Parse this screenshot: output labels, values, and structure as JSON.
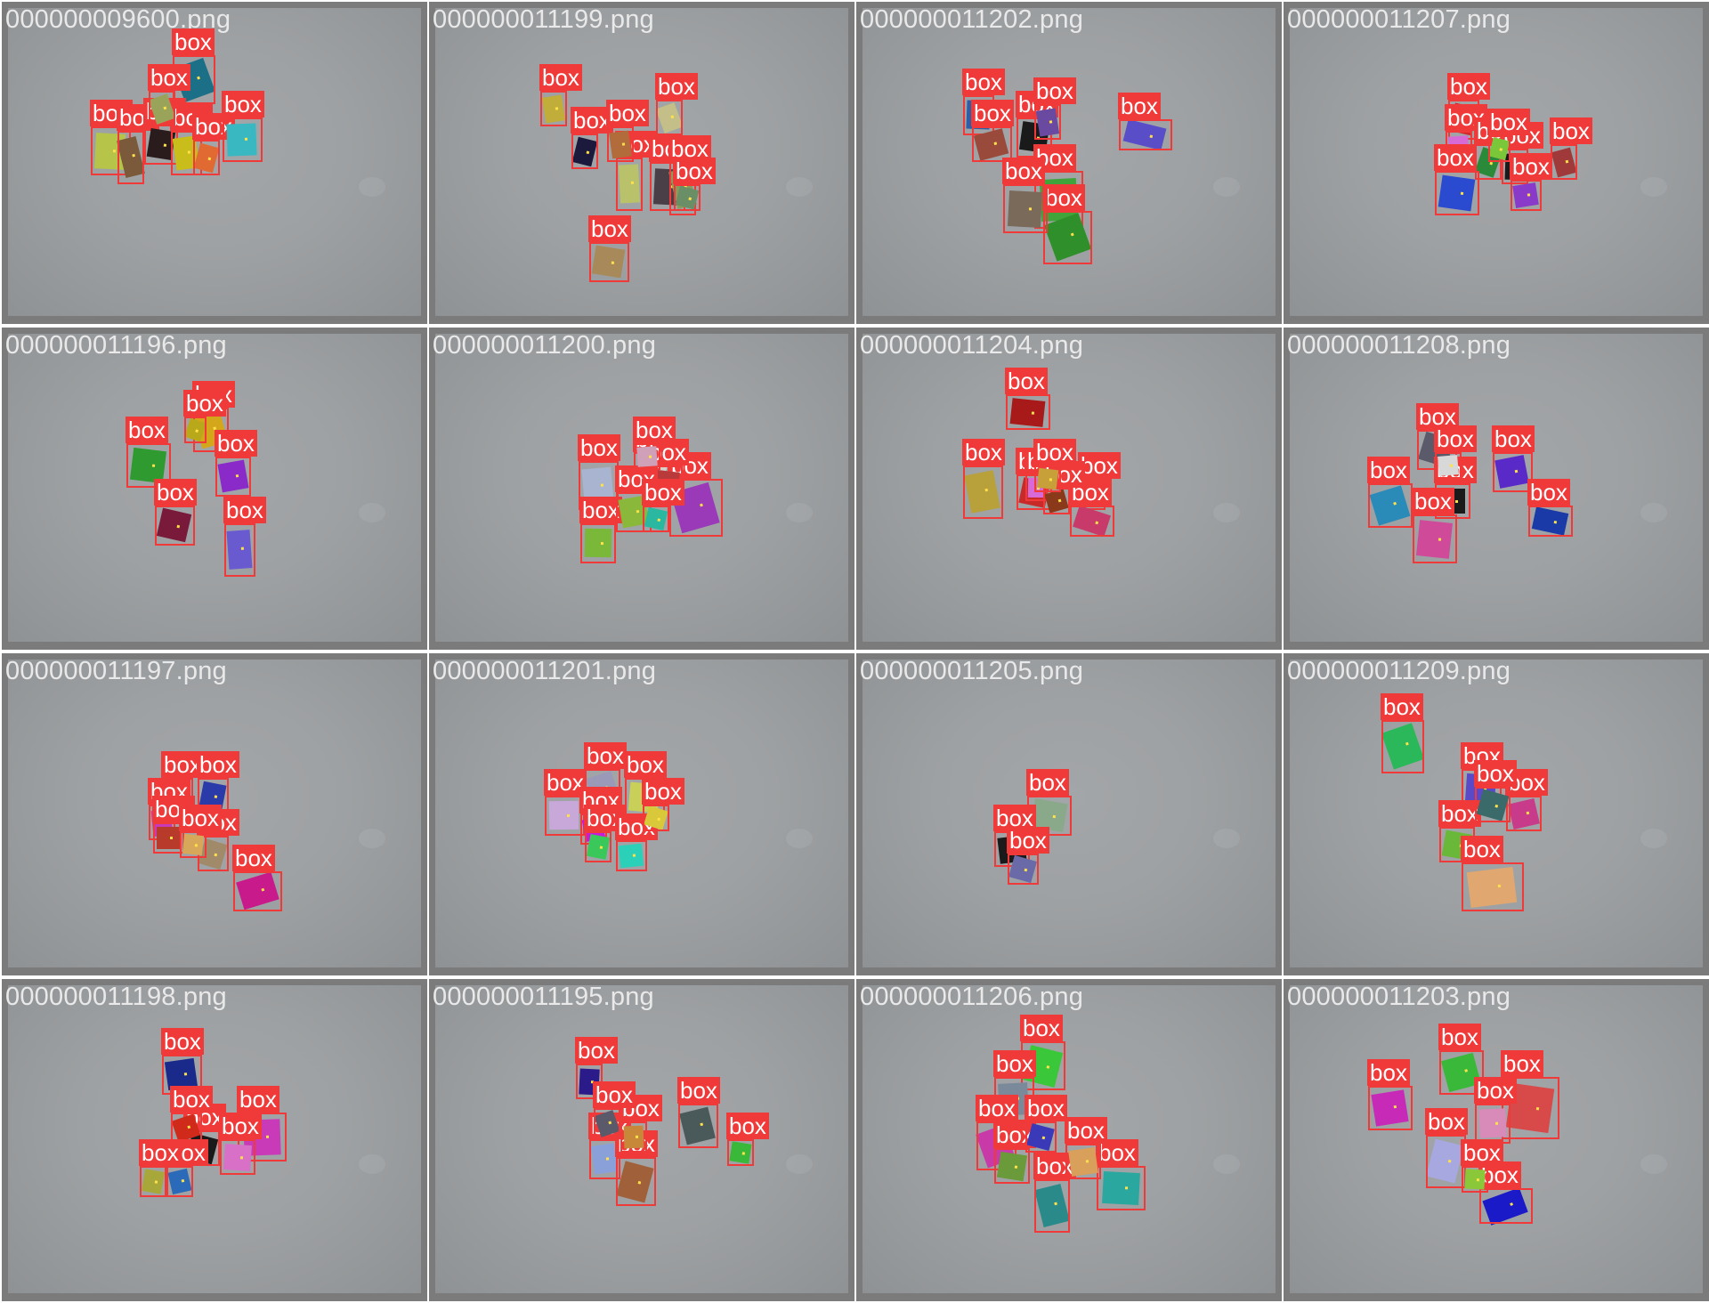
{
  "grid": {
    "columns": 4,
    "tiles": [
      {
        "filename": "000000009600.png",
        "label": "box",
        "detections": [
          {
            "color": "#1b6f86"
          },
          {
            "color": "#b7c44a"
          },
          {
            "color": "#7a5a3a"
          },
          {
            "color": "#2a1c1c"
          },
          {
            "color": "#c8bd1a"
          },
          {
            "color": "#e06a32"
          },
          {
            "color": "#3ab8c2"
          },
          {
            "color": "#9aa35a"
          }
        ]
      },
      {
        "filename": "000000011199.png",
        "label": "box",
        "detections": [
          {
            "color": "#c0ad3a"
          },
          {
            "color": "#1b1a3d"
          },
          {
            "color": "#b9c26a"
          },
          {
            "color": "#c4be88"
          },
          {
            "color": "#4a3f47"
          },
          {
            "color": "#8a9a5a"
          },
          {
            "color": "#a88a5a"
          },
          {
            "color": "#b26b3a"
          },
          {
            "color": "#6a8f66"
          }
        ]
      },
      {
        "filename": "000000011202.png",
        "label": "box",
        "detections": [
          {
            "color": "#2c5fa6"
          },
          {
            "color": "#9a4a3a"
          },
          {
            "color": "#1a1a1a"
          },
          {
            "color": "#6a4aa0"
          },
          {
            "color": "#5a4ec8"
          },
          {
            "color": "#3fa43a"
          },
          {
            "color": "#2f8f2a"
          },
          {
            "color": "#7a6a5a"
          }
        ]
      },
      {
        "filename": "000000011207.png",
        "label": "box",
        "detections": [
          {
            "color": "#d22a2a"
          },
          {
            "color": "#d86ad8"
          },
          {
            "color": "#2a8a3a"
          },
          {
            "color": "#1a1a1a"
          },
          {
            "color": "#a03a3a"
          },
          {
            "color": "#2a4ad0"
          },
          {
            "color": "#8a3ac8"
          },
          {
            "color": "#7ac83a"
          }
        ]
      },
      {
        "filename": "000000011196.png",
        "label": "box",
        "detections": [
          {
            "color": "#d4a61a"
          },
          {
            "color": "#2f9a2f"
          },
          {
            "color": "#8a2ac8"
          },
          {
            "color": "#7a1a3a"
          },
          {
            "color": "#6a5ad0"
          },
          {
            "color": "#b8a81a"
          }
        ]
      },
      {
        "filename": "000000011200.png",
        "label": "box",
        "detections": [
          {
            "color": "#a8b4d0"
          },
          {
            "color": "#d8d0c8"
          },
          {
            "color": "#7ab83a"
          },
          {
            "color": "#9a3ab8"
          },
          {
            "color": "#b83a3a"
          },
          {
            "color": "#8ab83a"
          },
          {
            "color": "#2ab8a0"
          },
          {
            "color": "#d0a0b8"
          }
        ]
      },
      {
        "filename": "000000011204.png",
        "label": "box",
        "detections": [
          {
            "color": "#a81a1a"
          },
          {
            "color": "#b8a03a"
          },
          {
            "color": "#c82a2a"
          },
          {
            "color": "#1a1a6a"
          },
          {
            "color": "#c83a6a"
          },
          {
            "color": "#d86ad8"
          },
          {
            "color": "#8a3a1a"
          },
          {
            "color": "#c8a03a"
          }
        ]
      },
      {
        "filename": "000000011208.png",
        "label": "box",
        "detections": [
          {
            "color": "#5a5a6a"
          },
          {
            "color": "#1a1a1a"
          },
          {
            "color": "#2a8ab8"
          },
          {
            "color": "#d04a9a"
          },
          {
            "color": "#5a2ac8"
          },
          {
            "color": "#1a3aa8"
          },
          {
            "color": "#d8d8d8"
          }
        ]
      },
      {
        "filename": "000000011197.png",
        "label": "box",
        "detections": [
          {
            "color": "#1a1a1a"
          },
          {
            "color": "#2a3aa8"
          },
          {
            "color": "#c83ab8"
          },
          {
            "color": "#a08a6a"
          },
          {
            "color": "#b83a2a"
          },
          {
            "color": "#c81a8a"
          },
          {
            "color": "#d8a85a"
          }
        ]
      },
      {
        "filename": "000000011201.png",
        "label": "box",
        "detections": [
          {
            "color": "#c8a8d8"
          },
          {
            "color": "#9a9ab8"
          },
          {
            "color": "#c8d05a"
          },
          {
            "color": "#c81ad8"
          },
          {
            "color": "#3ac85a"
          },
          {
            "color": "#2ad0b8"
          },
          {
            "color": "#d8c83a"
          }
        ]
      },
      {
        "filename": "000000011205.png",
        "label": "box",
        "detections": [
          {
            "color": "#8aa88a"
          },
          {
            "color": "#1a1a1a"
          },
          {
            "color": "#6a6aa8"
          }
        ]
      },
      {
        "filename": "000000011209.png",
        "label": "box",
        "detections": [
          {
            "color": "#2ab85a"
          },
          {
            "color": "#5a4ac8"
          },
          {
            "color": "#c83a8a"
          },
          {
            "color": "#6ab83a"
          },
          {
            "color": "#e0a870"
          },
          {
            "color": "#3a6a6a"
          }
        ]
      },
      {
        "filename": "000000011198.png",
        "label": "box",
        "detections": [
          {
            "color": "#1a2a8a"
          },
          {
            "color": "#1a1a1a"
          },
          {
            "color": "#c83ab8"
          },
          {
            "color": "#d02a1a"
          },
          {
            "color": "#d870c8"
          },
          {
            "color": "#2a6ab8"
          },
          {
            "color": "#a8a83a"
          }
        ]
      },
      {
        "filename": "000000011195.png",
        "label": "box",
        "detections": [
          {
            "color": "#2a1a8a"
          },
          {
            "color": "#4a5a5a"
          },
          {
            "color": "#3ab83a"
          },
          {
            "color": "#8aa0d8"
          },
          {
            "color": "#a0603a"
          },
          {
            "color": "#c8883a"
          },
          {
            "color": "#5a5a6a"
          }
        ]
      },
      {
        "filename": "000000011206.png",
        "label": "box",
        "detections": [
          {
            "color": "#3ac83a"
          },
          {
            "color": "#7a8a9a"
          },
          {
            "color": "#c83aa8"
          },
          {
            "color": "#2aa8a0"
          },
          {
            "color": "#2a8a8a"
          },
          {
            "color": "#6a9a3a"
          },
          {
            "color": "#d8a05a"
          },
          {
            "color": "#3a3ab8"
          }
        ]
      },
      {
        "filename": "000000011203.png",
        "label": "box",
        "detections": [
          {
            "color": "#3ab83a"
          },
          {
            "color": "#d84a4a"
          },
          {
            "color": "#c82ab8"
          },
          {
            "color": "#a8a8e0"
          },
          {
            "color": "#d88ab8"
          },
          {
            "color": "#1a1ac8"
          },
          {
            "color": "#8ac83a"
          }
        ]
      }
    ]
  }
}
